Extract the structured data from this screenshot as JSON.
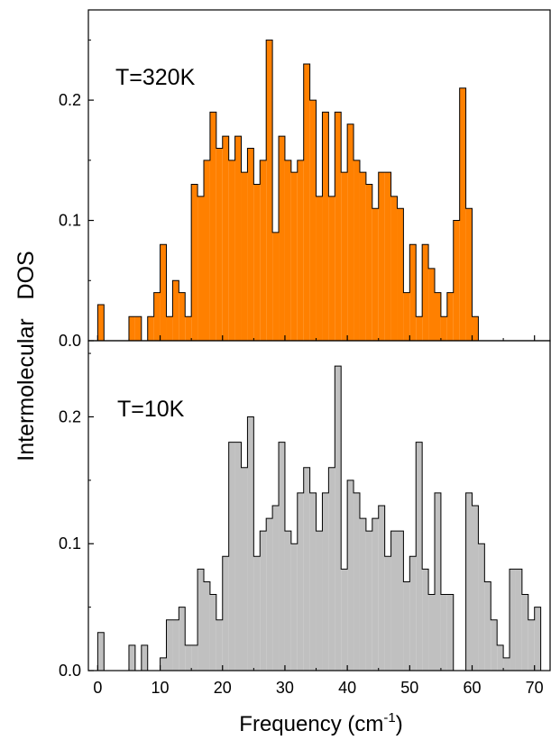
{
  "ylabel": "Intermolecular   DOS",
  "xlabel": {
    "main": "Frequency (cm",
    "sup": "-1",
    "close": ")"
  },
  "colors": {
    "top_fill": "#FF8000",
    "bottom_fill": "#C0C0C0",
    "stroke": "#000000"
  },
  "chart_data": [
    {
      "type": "bar",
      "title": "T=320K",
      "xlim": [
        -1.5,
        72.5
      ],
      "ylim": [
        0,
        0.275
      ],
      "x_ticks": [
        0,
        10,
        20,
        30,
        40,
        50,
        60,
        70
      ],
      "x_tick_labels": [],
      "y_ticks": [
        0.0,
        0.1,
        0.2
      ],
      "y_tick_labels": [
        "0.0",
        "0.1",
        "0.2"
      ],
      "bin_start": 0,
      "bin_width": 1,
      "values": [
        0.03,
        0,
        0,
        0,
        0,
        0.02,
        0.02,
        0,
        0.02,
        0.04,
        0.08,
        0.02,
        0.05,
        0.04,
        0.02,
        0.13,
        0.12,
        0.15,
        0.19,
        0.16,
        0.17,
        0.15,
        0.17,
        0.14,
        0.16,
        0.13,
        0.15,
        0.25,
        0.09,
        0.17,
        0.15,
        0.14,
        0.15,
        0.23,
        0.2,
        0.12,
        0.19,
        0.12,
        0.19,
        0.14,
        0.18,
        0.15,
        0.14,
        0.13,
        0.11,
        0.14,
        0.14,
        0.12,
        0.11,
        0.04,
        0.08,
        0.02,
        0.08,
        0.06,
        0.04,
        0.02,
        0.04,
        0.1,
        0.21,
        0.11,
        0.02,
        0,
        0,
        0,
        0,
        0,
        0,
        0,
        0,
        0,
        0,
        0
      ]
    },
    {
      "type": "bar",
      "title": "T=10K",
      "xlim": [
        -1.5,
        72.5
      ],
      "ylim": [
        0,
        0.26
      ],
      "x_ticks": [
        0,
        10,
        20,
        30,
        40,
        50,
        60,
        70
      ],
      "x_tick_labels": [
        "0",
        "10",
        "20",
        "30",
        "40",
        "50",
        "60",
        "70"
      ],
      "y_ticks": [
        0.0,
        0.1,
        0.2
      ],
      "y_tick_labels": [
        "0.0",
        "0.1",
        "0.2"
      ],
      "bin_start": 0,
      "bin_width": 1,
      "values": [
        0.03,
        0,
        0,
        0,
        0,
        0.02,
        0,
        0.02,
        0,
        0,
        0.01,
        0.04,
        0.04,
        0.05,
        0.02,
        0.02,
        0.08,
        0.07,
        0.06,
        0.04,
        0.09,
        0.18,
        0.18,
        0.16,
        0.2,
        0.09,
        0.11,
        0.12,
        0.13,
        0.18,
        0.11,
        0.1,
        0.14,
        0.16,
        0.14,
        0.11,
        0.14,
        0.16,
        0.24,
        0.08,
        0.15,
        0.14,
        0.12,
        0.11,
        0.12,
        0.13,
        0.09,
        0.11,
        0.11,
        0.07,
        0.09,
        0.18,
        0.08,
        0.06,
        0.14,
        0.06,
        0.06,
        0,
        0,
        0.14,
        0.13,
        0.1,
        0.07,
        0.04,
        0.02,
        0.01,
        0.08,
        0.08,
        0.06,
        0.04,
        0.05,
        0
      ]
    }
  ]
}
